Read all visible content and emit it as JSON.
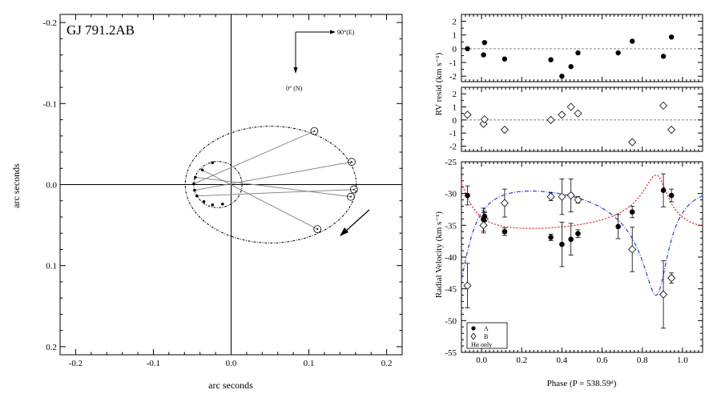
{
  "chart_data": [
    {
      "type": "scatter",
      "title": "GJ 791.2AB",
      "xlabel": "arc seconds",
      "ylabel": "arc seconds",
      "xlim": [
        -0.22,
        0.22
      ],
      "ylim": [
        -0.21,
        0.21
      ],
      "y_inverted": true,
      "xticks": [
        -0.2,
        -0.1,
        0.0,
        0.1,
        0.2
      ],
      "xtick_labels": [
        "-0.2",
        "-0.1",
        "0.0",
        "0.1",
        "0.2"
      ],
      "yticks": [
        -0.2,
        -0.1,
        0.0,
        0.1,
        0.2
      ],
      "ytick_labels": [
        "-0.2",
        "-0.1",
        "0.0",
        "0.1",
        "0.2"
      ],
      "compass": {
        "east_label": "90°(E)",
        "north_label": "0° (N)"
      },
      "outer_orbit": {
        "center": [
          0.051,
          0.0
        ],
        "semi_axes": [
          0.11,
          0.072
        ]
      },
      "inner_orbit": {
        "center": [
          -0.017,
          0.0
        ],
        "semi_axes": [
          0.031,
          0.0285
        ]
      },
      "observed_positions": [
        {
          "x": 0.107,
          "y": -0.066
        },
        {
          "x": 0.155,
          "y": -0.028
        },
        {
          "x": 0.158,
          "y": 0.006
        },
        {
          "x": 0.154,
          "y": 0.015
        },
        {
          "x": 0.111,
          "y": 0.055
        }
      ],
      "inner_marked_points": [
        {
          "x": -0.048,
          "y": -0.001
        },
        {
          "x": -0.047,
          "y": 0.007
        },
        {
          "x": -0.044,
          "y": 0.014
        },
        {
          "x": -0.046,
          "y": -0.009
        },
        {
          "x": -0.037,
          "y": -0.018
        },
        {
          "x": -0.024,
          "y": -0.027
        },
        {
          "x": -0.011,
          "y": 0.024
        },
        {
          "x": -0.024,
          "y": 0.025
        },
        {
          "x": -0.035,
          "y": 0.021
        }
      ]
    },
    {
      "type": "scatter",
      "ylabel": "RV resid (km s⁻¹)",
      "xlim": [
        -0.1,
        1.1
      ],
      "ylim": [
        -2.4,
        2.5
      ],
      "yticks": [
        -2,
        -1,
        0,
        1,
        2
      ],
      "ytick_labels": [
        "-2",
        "-1",
        "0",
        "1",
        "2"
      ],
      "series": [
        {
          "x": [
            -0.07,
            0.01,
            0.015,
            0.115,
            0.345,
            0.4,
            0.445,
            0.48,
            0.68,
            0.75,
            0.905,
            0.945
          ],
          "y": [
            0.0,
            -0.45,
            0.45,
            -0.75,
            -0.8,
            -2.0,
            -1.3,
            -0.3,
            -0.3,
            0.55,
            -0.55,
            0.85
          ]
        }
      ]
    },
    {
      "type": "scatter",
      "xlim": [
        -0.1,
        1.1
      ],
      "ylim": [
        -2.4,
        2.5
      ],
      "yticks": [
        -2,
        -1,
        0,
        1,
        2
      ],
      "ytick_labels": [
        "-2",
        "-1",
        "0",
        "1",
        "2"
      ],
      "series": [
        {
          "x": [
            -0.07,
            0.01,
            0.015,
            0.115,
            0.345,
            0.4,
            0.445,
            0.48,
            0.75,
            0.905,
            0.945
          ],
          "y": [
            0.4,
            -0.3,
            0.05,
            -0.75,
            0.0,
            0.4,
            1.0,
            0.5,
            -1.7,
            1.1,
            -0.75
          ]
        }
      ]
    },
    {
      "type": "scatter",
      "xlabel": "Phase (P = 538.59ᵈ)",
      "ylabel": "Radial Velocity (km s⁻¹)",
      "xlim": [
        -0.1,
        1.1
      ],
      "ylim": [
        -55,
        -25
      ],
      "xticks": [
        0.0,
        0.2,
        0.4,
        0.6,
        0.8,
        1.0
      ],
      "xtick_labels": [
        "0.0",
        "0.2",
        "0.4",
        "0.6",
        "0.8",
        "1.0"
      ],
      "yticks": [
        -55,
        -50,
        -45,
        -40,
        -35,
        -30,
        -25
      ],
      "ytick_labels": [
        "-55",
        "-50",
        "-45",
        "-40",
        "-35",
        "-30",
        "-25"
      ],
      "legend": {
        "labels": [
          "A",
          "B",
          "Hα only"
        ],
        "position": "bottom-left"
      },
      "series": [
        {
          "name": "A",
          "x": [
            -0.07,
            0.01,
            0.015,
            0.115,
            0.345,
            0.4,
            0.445,
            0.48,
            0.68,
            0.75,
            0.905,
            0.945
          ],
          "y": [
            -30.3,
            -34.1,
            -33.6,
            -36.0,
            -36.9,
            -38.0,
            -37.2,
            -36.3,
            -35.2,
            -32.9,
            -29.5,
            -30.3
          ],
          "err": [
            1.5,
            1.8,
            0.8,
            0.6,
            0.5,
            3.5,
            2.5,
            0.6,
            1.9,
            0.9,
            2.6,
            1.0
          ]
        },
        {
          "name": "B",
          "x": [
            -0.07,
            0.01,
            0.015,
            0.115,
            0.345,
            0.4,
            0.445,
            0.48,
            0.75,
            0.905,
            0.945
          ],
          "y": [
            -44.5,
            -35.0,
            -34.0,
            -31.5,
            -30.5,
            -30.5,
            -30.3,
            -31.0,
            -38.8,
            -45.9,
            -43.3
          ],
          "err": [
            3.5,
            1.2,
            1.0,
            2.2,
            0.6,
            2.8,
            2.6,
            0.5,
            3.5,
            5.3,
            0.8
          ]
        },
        {
          "name": "A_model",
          "curve": true,
          "color": "#e8201e"
        },
        {
          "name": "B_model",
          "curve": true,
          "color": "#2d3fd6"
        }
      ]
    }
  ]
}
